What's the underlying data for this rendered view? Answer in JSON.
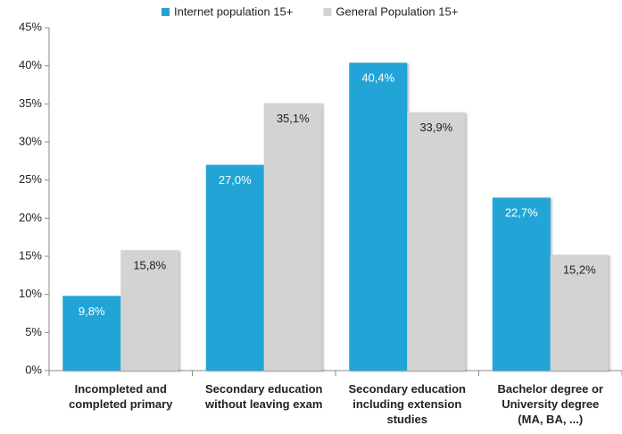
{
  "chart_data": {
    "type": "bar",
    "categories": [
      "Incompleted and\ncompleted primary",
      "Secondary education\nwithout leaving exam",
      "Secondary education\nincluding extension\nstudies",
      "Bachelor degree or\nUniversity degree\n(MA, BA, ...)"
    ],
    "series": [
      {
        "name": "Internet population 15+",
        "color": "#22a5d6",
        "values": [
          9.8,
          27.0,
          40.4,
          22.7
        ],
        "value_labels": [
          "9,8%",
          "27,0%",
          "40,4%",
          "22,7%"
        ]
      },
      {
        "name": "General Population 15+",
        "color": "#d3d3d3",
        "values": [
          15.8,
          35.1,
          33.9,
          15.2
        ],
        "value_labels": [
          "15,8%",
          "35,1%",
          "33,9%",
          "15,2%"
        ]
      }
    ],
    "ylim": [
      0,
      45
    ],
    "yticks": [
      {
        "value": 0,
        "label": "0%"
      },
      {
        "value": 5,
        "label": "5%"
      },
      {
        "value": 10,
        "label": "10%"
      },
      {
        "value": 15,
        "label": "15%"
      },
      {
        "value": 20,
        "label": "20%"
      },
      {
        "value": 25,
        "label": "25%"
      },
      {
        "value": 30,
        "label": "30%"
      },
      {
        "value": 35,
        "label": "35%"
      },
      {
        "value": 40,
        "label": "40%"
      },
      {
        "value": 45,
        "label": "45%"
      }
    ]
  }
}
